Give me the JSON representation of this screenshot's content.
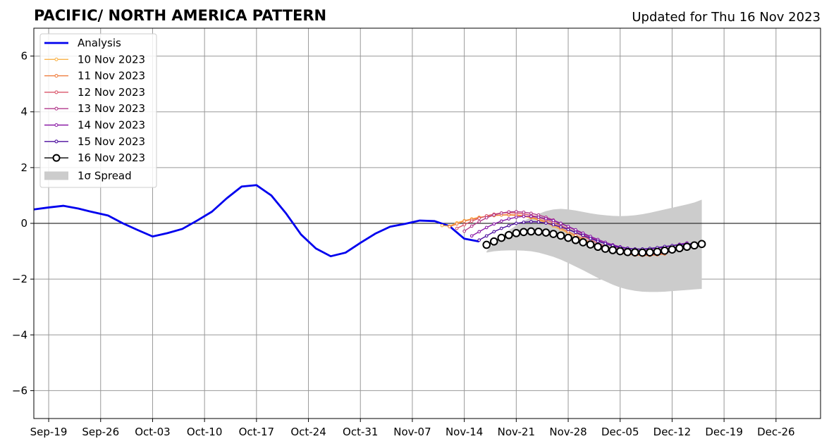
{
  "chart_data": {
    "type": "line",
    "title": "PACIFIC/ NORTH AMERICA PATTERN",
    "subtitle": "Updated for Thu 16 Nov 2023",
    "xlabel": "",
    "ylabel": "",
    "x_axis": {
      "type": "date",
      "range": [
        "2023-09-17",
        "2024-01-01"
      ],
      "ticks": [
        "2023-09-19",
        "2023-09-26",
        "2023-10-03",
        "2023-10-10",
        "2023-10-17",
        "2023-10-24",
        "2023-10-31",
        "2023-11-07",
        "2023-11-14",
        "2023-11-21",
        "2023-11-28",
        "2023-12-05",
        "2023-12-12",
        "2023-12-19",
        "2023-12-26"
      ],
      "tick_labels": [
        "Sep-19",
        "Sep-26",
        "Oct-03",
        "Oct-10",
        "Oct-17",
        "Oct-24",
        "Oct-31",
        "Nov-07",
        "Nov-14",
        "Nov-21",
        "Nov-28",
        "Dec-05",
        "Dec-12",
        "Dec-19",
        "Dec-26"
      ]
    },
    "ylim": [
      -7,
      7
    ],
    "y_ticks": [
      -6,
      -4,
      -2,
      0,
      2,
      4,
      6
    ],
    "y_tick_labels": [
      "−6",
      "−4",
      "−2",
      "0",
      "2",
      "4",
      "6"
    ],
    "grid": true,
    "legend_position": "top-left",
    "analysis": {
      "name": "Analysis",
      "color": "#0000ee",
      "x": [
        "2023-09-17",
        "2023-09-19",
        "2023-09-21",
        "2023-09-23",
        "2023-09-25",
        "2023-09-27",
        "2023-09-29",
        "2023-10-01",
        "2023-10-03",
        "2023-10-05",
        "2023-10-07",
        "2023-10-09",
        "2023-10-11",
        "2023-10-13",
        "2023-10-15",
        "2023-10-17",
        "2023-10-19",
        "2023-10-21",
        "2023-10-23",
        "2023-10-25",
        "2023-10-27",
        "2023-10-29",
        "2023-10-31",
        "2023-11-02",
        "2023-11-04",
        "2023-11-06",
        "2023-11-08",
        "2023-11-10",
        "2023-11-12",
        "2023-11-14",
        "2023-11-16"
      ],
      "values": [
        0.5,
        0.57,
        0.63,
        0.53,
        0.4,
        0.28,
        0.0,
        -0.24,
        -0.47,
        -0.35,
        -0.2,
        0.1,
        0.42,
        0.9,
        1.32,
        1.37,
        1.0,
        0.35,
        -0.4,
        -0.9,
        -1.18,
        -1.05,
        -0.7,
        -0.37,
        -0.12,
        -0.02,
        0.1,
        0.08,
        -0.1,
        -0.55,
        -0.65
      ]
    },
    "forecasts": [
      {
        "name": "10 Nov 2023",
        "color": "#f9b34b",
        "start": "2023-11-11",
        "values": [
          -0.08,
          -0.1,
          0.02,
          0.1,
          0.16,
          0.22,
          0.25,
          0.28,
          0.3,
          0.3,
          0.28,
          0.25,
          0.2,
          0.12,
          0.02,
          -0.1,
          -0.22,
          -0.35,
          -0.48,
          -0.6,
          -0.72,
          -0.82,
          -0.9,
          -0.97,
          -1.02,
          -1.06,
          -1.1,
          -1.12,
          -1.12,
          -1.12
        ]
      },
      {
        "name": "11 Nov 2023",
        "color": "#ef7e3f",
        "start": "2023-11-12",
        "values": [
          -0.12,
          -0.02,
          0.08,
          0.14,
          0.2,
          0.25,
          0.28,
          0.3,
          0.31,
          0.3,
          0.27,
          0.22,
          0.15,
          0.06,
          -0.05,
          -0.17,
          -0.3,
          -0.43,
          -0.56,
          -0.68,
          -0.8,
          -0.9,
          -0.98,
          -1.05,
          -1.1,
          -1.14,
          -1.15,
          -1.15,
          -1.13,
          -1.1
        ]
      },
      {
        "name": "12 Nov 2023",
        "color": "#d9566a",
        "start": "2023-11-13",
        "values": [
          -0.18,
          -0.05,
          0.08,
          0.18,
          0.27,
          0.33,
          0.37,
          0.38,
          0.37,
          0.34,
          0.29,
          0.22,
          0.13,
          0.03,
          -0.08,
          -0.2,
          -0.33,
          -0.46,
          -0.59,
          -0.71,
          -0.82,
          -0.92,
          -1.0,
          -1.06,
          -1.1,
          -1.12,
          -1.12,
          -1.1,
          -1.06,
          -1.0
        ]
      },
      {
        "name": "13 Nov 2023",
        "color": "#b23a8c",
        "start": "2023-11-14",
        "values": [
          -0.28,
          -0.1,
          0.06,
          0.2,
          0.3,
          0.37,
          0.41,
          0.42,
          0.4,
          0.36,
          0.3,
          0.22,
          0.12,
          0.0,
          -0.12,
          -0.25,
          -0.38,
          -0.5,
          -0.62,
          -0.73,
          -0.82,
          -0.9,
          -0.96,
          -1.0,
          -1.02,
          -1.02,
          -1.0,
          -0.97,
          -0.93,
          -0.88
        ]
      },
      {
        "name": "14 Nov 2023",
        "color": "#8a1aa6",
        "start": "2023-11-15",
        "values": [
          -0.45,
          -0.3,
          -0.15,
          -0.02,
          0.08,
          0.16,
          0.22,
          0.25,
          0.25,
          0.22,
          0.17,
          0.1,
          0.0,
          -0.11,
          -0.23,
          -0.35,
          -0.47,
          -0.58,
          -0.68,
          -0.77,
          -0.84,
          -0.89,
          -0.92,
          -0.93,
          -0.92,
          -0.89,
          -0.85,
          -0.8,
          -0.75,
          -0.7
        ]
      },
      {
        "name": "15 Nov 2023",
        "color": "#4b0c9e",
        "start": "2023-11-16",
        "values": [
          -0.6,
          -0.45,
          -0.3,
          -0.18,
          -0.08,
          0.0,
          0.04,
          0.06,
          0.05,
          0.01,
          -0.05,
          -0.13,
          -0.22,
          -0.32,
          -0.43,
          -0.54,
          -0.64,
          -0.73,
          -0.8,
          -0.86,
          -0.9,
          -0.92,
          -0.92,
          -0.9,
          -0.87,
          -0.83,
          -0.8,
          -0.77,
          -0.74,
          -0.72
        ]
      }
    ],
    "latest": {
      "name": "16 Nov 2023",
      "color": "#000000",
      "start": "2023-11-17",
      "values": [
        -0.77,
        -0.65,
        -0.52,
        -0.42,
        -0.35,
        -0.31,
        -0.29,
        -0.3,
        -0.33,
        -0.38,
        -0.44,
        -0.52,
        -0.6,
        -0.68,
        -0.76,
        -0.84,
        -0.91,
        -0.96,
        -1.0,
        -1.03,
        -1.04,
        -1.05,
        -1.04,
        -1.02,
        -0.98,
        -0.94,
        -0.89,
        -0.84,
        -0.79,
        -0.74
      ]
    },
    "spread": {
      "name": "1σ Spread",
      "color": "#cccccc",
      "start": "2023-11-17",
      "upper": [
        -1.0,
        -0.7,
        -0.45,
        -0.25,
        -0.08,
        0.08,
        0.22,
        0.34,
        0.44,
        0.5,
        0.52,
        0.5,
        0.46,
        0.41,
        0.36,
        0.32,
        0.29,
        0.27,
        0.26,
        0.27,
        0.29,
        0.33,
        0.38,
        0.44,
        0.5,
        0.56,
        0.62,
        0.68,
        0.75,
        0.85
      ],
      "lower": [
        -1.05,
        -1.0,
        -0.98,
        -0.97,
        -0.97,
        -0.98,
        -1.0,
        -1.05,
        -1.12,
        -1.2,
        -1.3,
        -1.42,
        -1.55,
        -1.68,
        -1.82,
        -1.96,
        -2.08,
        -2.2,
        -2.3,
        -2.37,
        -2.42,
        -2.45,
        -2.46,
        -2.46,
        -2.45,
        -2.43,
        -2.41,
        -2.39,
        -2.37,
        -2.35
      ]
    },
    "legend": [
      "Analysis",
      "10 Nov 2023",
      "11 Nov 2023",
      "12 Nov 2023",
      "13 Nov 2023",
      "14 Nov 2023",
      "15 Nov 2023",
      "16 Nov 2023",
      "1σ Spread"
    ]
  }
}
